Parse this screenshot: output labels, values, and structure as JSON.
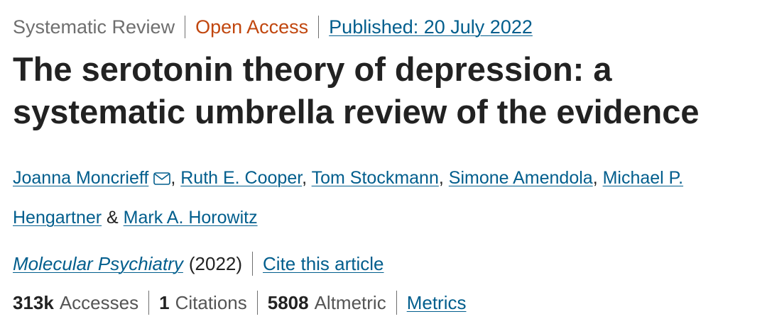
{
  "meta": {
    "type": "Systematic Review",
    "access": "Open Access",
    "published": "Published: 20 July 2022"
  },
  "article": {
    "title_line1": "The serotonin theory of depression: a",
    "title_line2": "systematic umbrella review of the evidence"
  },
  "authors": {
    "a1": "Joanna Moncrieff",
    "sep1": ", ",
    "a2": "Ruth E. Cooper",
    "sep2": ", ",
    "a3": "Tom Stockmann",
    "sep3": ", ",
    "a4": "Simone Amendola",
    "sep4": ", ",
    "a5_part1": "Michael P.",
    "a5_part2": "Hengartner",
    "amp": " & ",
    "a6": "Mark A. Horowitz"
  },
  "journal": {
    "name": "Molecular Psychiatry",
    "year": "(2022)",
    "cite": "Cite this article"
  },
  "metrics": {
    "accesses_value": "313k",
    "accesses_label": "Accesses",
    "citations_value": "1",
    "citations_label": "Citations",
    "altmetric_value": "5808",
    "altmetric_label": "Altmetric",
    "metrics_link": "Metrics"
  },
  "colors": {
    "link": "#025e8d",
    "open_access": "#c1470f",
    "text": "#222222",
    "muted": "#6f6f6f"
  },
  "icons": {
    "email": "envelope-icon"
  }
}
